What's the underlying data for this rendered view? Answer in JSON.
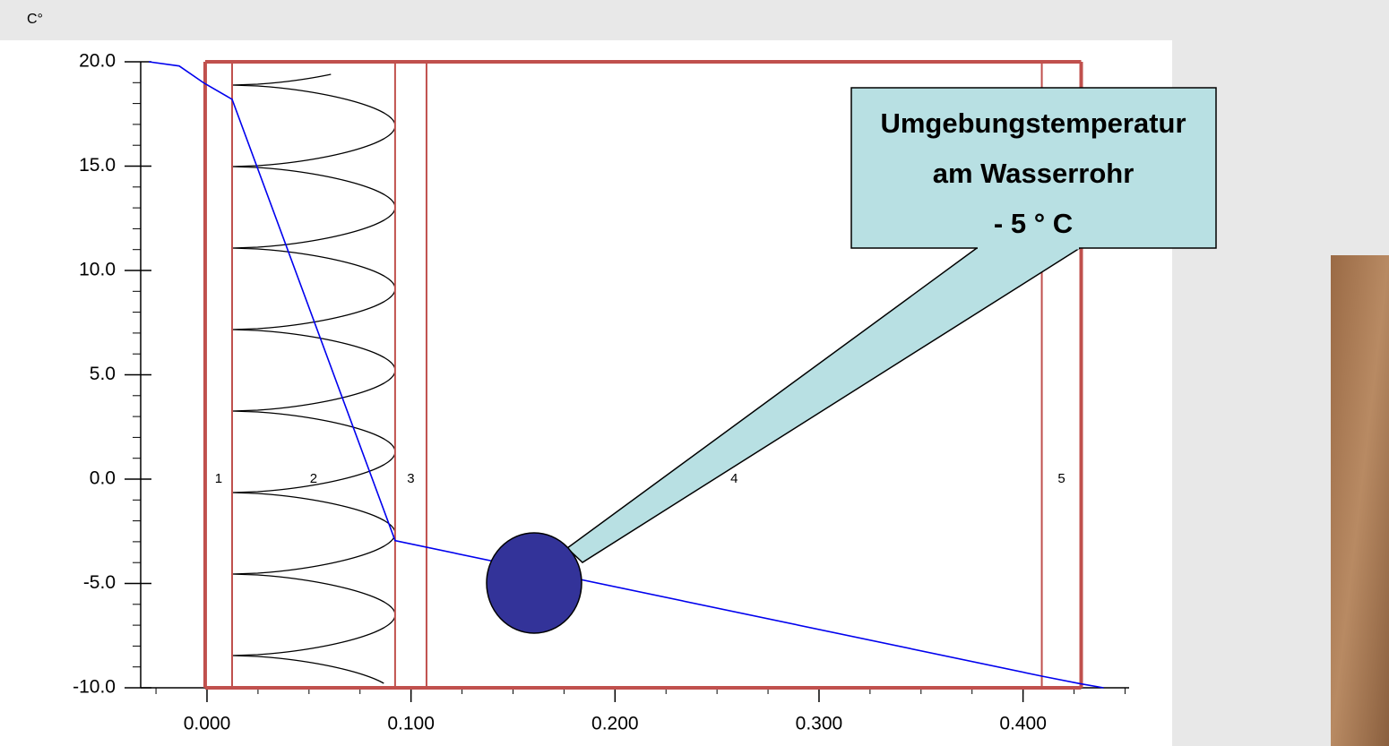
{
  "chart_data": {
    "type": "line",
    "y_unit_label": "C°",
    "x": [
      -0.0285,
      -0.0136,
      -0.0013,
      0.0123,
      0.0922,
      0.4092,
      0.4277,
      0.4395
    ],
    "series": [
      {
        "color": "#0000ee",
        "values": [
          20.0,
          19.8,
          18.97,
          18.2,
          -2.95,
          -9.44,
          -9.8,
          -10.0
        ]
      }
    ],
    "xlim": [
      -0.0325,
      0.452
    ],
    "ylim": [
      -10,
      20
    ],
    "xticks": [
      {
        "value": 0,
        "label": "0.000"
      },
      {
        "value": 0.1,
        "label": "0.100"
      },
      {
        "value": 0.2,
        "label": "0.200"
      },
      {
        "value": 0.3,
        "label": "0.300"
      },
      {
        "value": 0.4,
        "label": "0.400"
      }
    ],
    "yticks": [
      {
        "value": -10,
        "label": "-10.0"
      },
      {
        "value": -5,
        "label": "-5.0"
      },
      {
        "value": 0,
        "label": "0.0"
      },
      {
        "value": 5,
        "label": "5.0"
      },
      {
        "value": 10,
        "label": "10.0"
      },
      {
        "value": 15,
        "label": "15.0"
      },
      {
        "value": 20,
        "label": "20.0"
      }
    ],
    "x_minor_step": 0.025,
    "y_minor_step": 1,
    "layer_bounds": [
      -0.0009,
      0.0123,
      0.0922,
      0.1076,
      0.4092,
      0.4285
    ],
    "layer_labels": [
      "1",
      "2",
      "3",
      "4",
      "5"
    ],
    "layer_color": "#c0504d",
    "annotation": [
      "Umgebungstemperatur",
      "am Wasserrohr",
      "- 5 ° C"
    ]
  }
}
